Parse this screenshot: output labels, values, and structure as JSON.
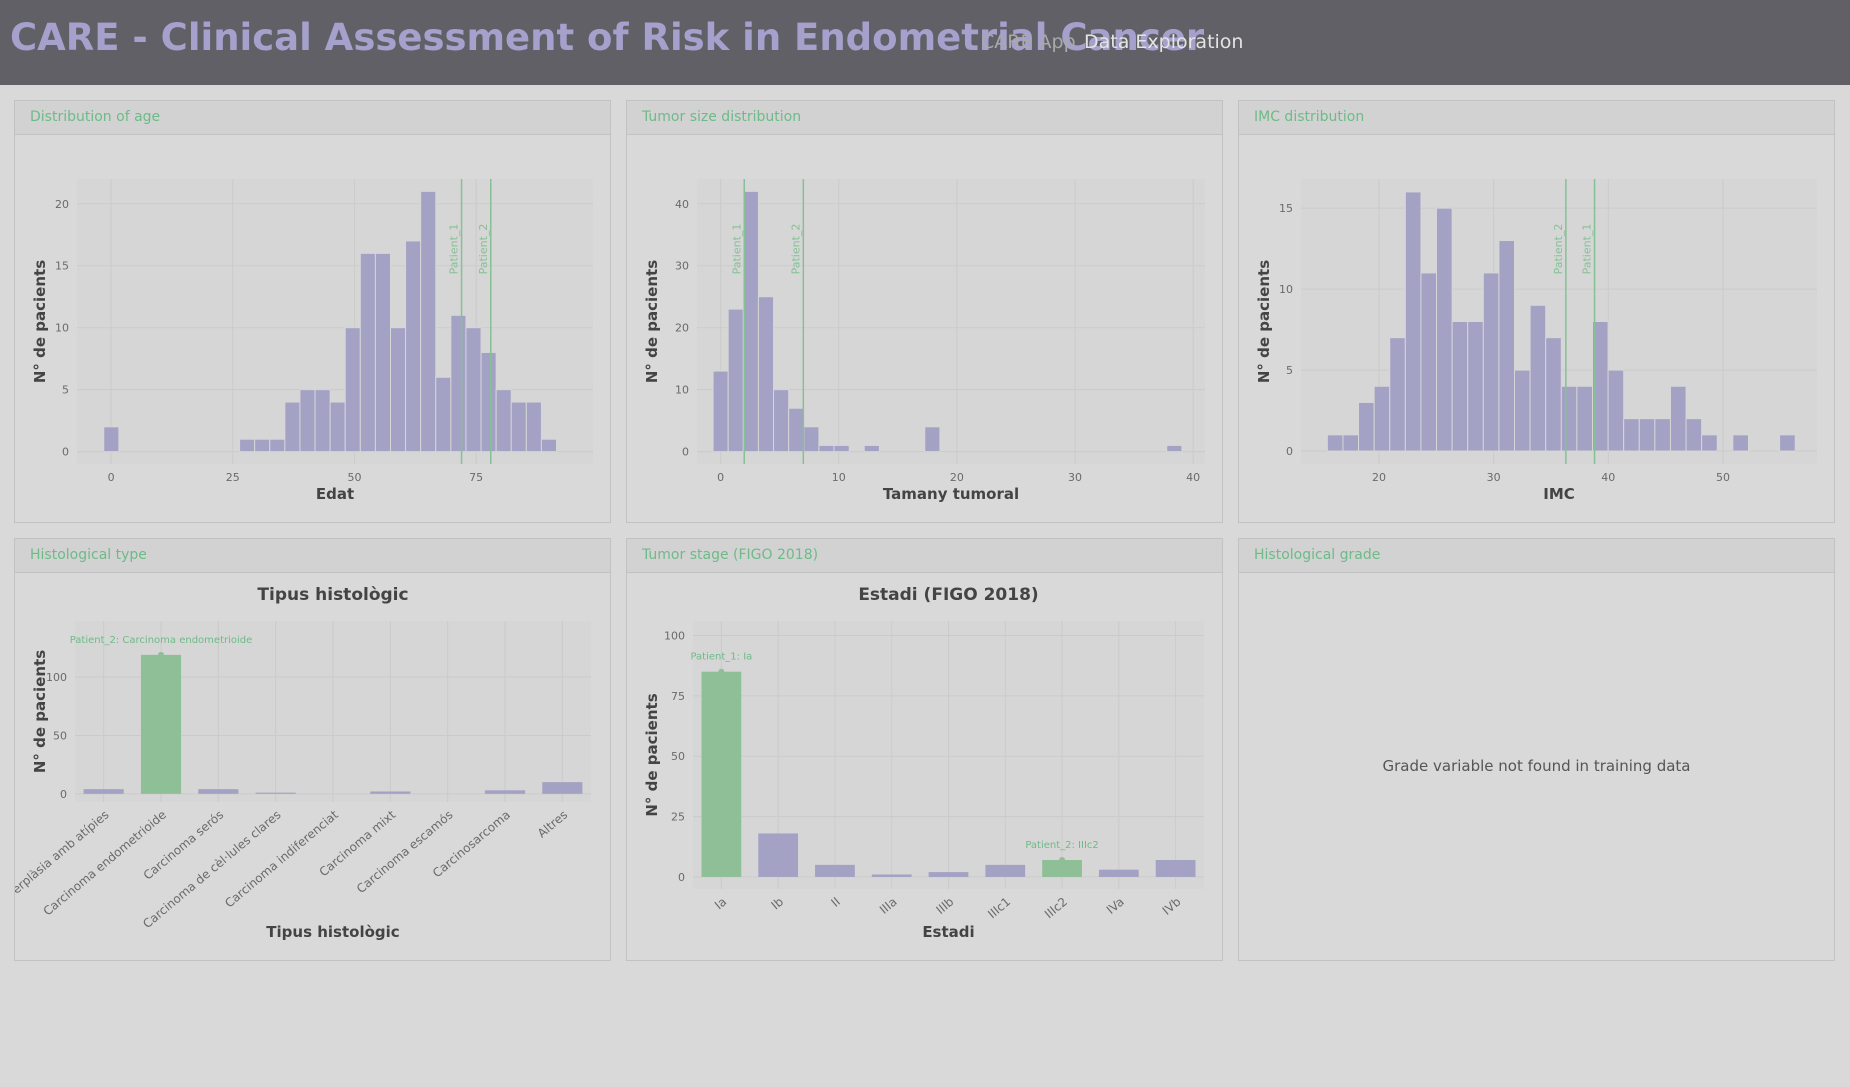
{
  "header": {
    "title": "CARE - Clinical Assessment of Risk in Endometrial Cancer",
    "app": "CARE App",
    "tab": "Data Exploration"
  },
  "panels": [
    "Distribution of age",
    "Tumor size distribution",
    "IMC distribution",
    "Histological type",
    "Tumor stage (FIGO 2018)",
    "Histological grade"
  ],
  "grade_message": "Grade variable not found in training data",
  "chart_data": [
    {
      "type": "histogram",
      "x_label": "Edat",
      "y_label": "N° de pacients",
      "color": "#a3a1c4",
      "line_color": "#86c096",
      "bins": [
        -1.5,
        1.6,
        4.7,
        7.8,
        10.9,
        14,
        17.1,
        20.2,
        23.3,
        26.4,
        29.5,
        32.6,
        35.7,
        38.8,
        41.9,
        45,
        48.1,
        51.2,
        54.3,
        57.4,
        60.5,
        63.6,
        66.7,
        69.8,
        72.9,
        76,
        79.1,
        82.2,
        85.3,
        88.4,
        91.5
      ],
      "values": [
        2,
        0,
        0,
        0,
        0,
        0,
        0,
        0,
        0,
        1,
        1,
        1,
        4,
        5,
        5,
        4,
        10,
        16,
        16,
        10,
        17,
        21,
        6,
        11,
        10,
        8,
        5,
        4,
        4,
        1
      ],
      "xlim": [
        -7,
        99
      ],
      "xticks": [
        0,
        25,
        50,
        75
      ],
      "ylim": [
        -1,
        22
      ],
      "yticks": [
        0,
        5,
        10,
        15,
        20
      ],
      "grid": true,
      "vlines": [
        {
          "label": "Patient_1",
          "x": 72
        },
        {
          "label": "Patient_2",
          "x": 78
        }
      ]
    },
    {
      "type": "histogram",
      "x_label": "Tamany tumoral",
      "y_label": "N° de pacients",
      "color": "#a3a1c4",
      "line_color": "#86c096",
      "bins": [
        -0.64,
        0.64,
        1.92,
        3.2,
        4.48,
        5.76,
        7.04,
        8.32,
        9.6,
        10.88,
        12.16,
        13.44,
        14.72,
        16,
        17.28,
        18.56,
        19.84,
        21.12,
        22.4,
        23.68,
        24.96,
        26.24,
        27.52,
        28.8,
        30.08,
        31.36,
        32.64,
        33.92,
        35.2,
        36.48,
        37.76,
        39.04
      ],
      "values": [
        13,
        23,
        42,
        25,
        10,
        7,
        4,
        1,
        1,
        0,
        1,
        0,
        0,
        0,
        4,
        0,
        0,
        0,
        0,
        0,
        0,
        0,
        0,
        0,
        0,
        0,
        0,
        0,
        0,
        0,
        1
      ],
      "xlim": [
        -2,
        41
      ],
      "xticks": [
        0,
        10,
        20,
        30,
        40
      ],
      "ylim": [
        -2,
        44
      ],
      "yticks": [
        0,
        10,
        20,
        30,
        40
      ],
      "grid": true,
      "vlines": [
        {
          "label": "Patient_1",
          "x": 2
        },
        {
          "label": "Patient_2",
          "x": 7
        }
      ]
    },
    {
      "type": "histogram",
      "x_label": "IMC",
      "y_label": "N° de pacients",
      "color": "#a3a1c4",
      "line_color": "#86c096",
      "bins": [
        15.5,
        16.86,
        18.22,
        19.58,
        20.94,
        22.3,
        23.66,
        25.02,
        26.38,
        27.74,
        29.1,
        30.46,
        31.82,
        33.18,
        34.54,
        35.9,
        37.26,
        38.62,
        39.98,
        41.34,
        42.7,
        44.06,
        45.42,
        46.78,
        48.14,
        49.5,
        50.86,
        52.22,
        53.58,
        54.94,
        56.3
      ],
      "values": [
        1,
        1,
        3,
        4,
        7,
        16,
        11,
        15,
        8,
        8,
        11,
        13,
        5,
        9,
        7,
        4,
        4,
        8,
        5,
        2,
        2,
        2,
        4,
        2,
        1,
        0,
        1,
        0,
        0,
        1
      ],
      "xlim": [
        13.2,
        58.2
      ],
      "xticks": [
        20,
        30,
        40,
        50
      ],
      "ylim": [
        -0.8,
        16.8
      ],
      "yticks": [
        0,
        5,
        10,
        15
      ],
      "grid": true,
      "vlines": [
        {
          "label": "Patient_2",
          "x": 36.3
        },
        {
          "label": "Patient_1",
          "x": 38.8
        }
      ]
    },
    {
      "type": "bar",
      "title": "Tipus histològic",
      "x_label": "Tipus histològic",
      "y_label": "N° de pacients",
      "categories": [
        "Hiperplàsia amb atípies",
        "Carcinoma endometrioide",
        "Carcinoma serós",
        "Carcinoma de cèl·lules clares",
        "Carcinoma indiferenciat",
        "Carcinoma mixt",
        "Carcinoma escamós",
        "Carcinosarcoma",
        "Altres"
      ],
      "values": [
        4,
        119,
        4,
        1,
        0,
        2,
        0,
        3,
        10
      ],
      "colors": [
        "#a3a1c4",
        "#8fbf96",
        "#a3a1c4",
        "#a3a1c4",
        "#a3a1c4",
        "#a3a1c4",
        "#a3a1c4",
        "#a3a1c4",
        "#a3a1c4"
      ],
      "ylim": [
        -7,
        148
      ],
      "yticks": [
        0,
        50,
        100
      ],
      "grid": true,
      "annotations": [
        {
          "text": "Patient_2: Carcinoma endometrioide",
          "category": "Carcinoma endometrioide"
        }
      ]
    },
    {
      "type": "bar",
      "title": "Estadi (FIGO 2018)",
      "x_label": "Estadi",
      "y_label": "N° de pacients",
      "categories": [
        "Ia",
        "Ib",
        "II",
        "IIIa",
        "IIIb",
        "IIIc1",
        "IIIc2",
        "IVa",
        "IVb"
      ],
      "values": [
        85,
        18,
        5,
        1,
        2,
        5,
        7,
        3,
        7
      ],
      "colors": [
        "#8fbf96",
        "#a3a1c4",
        "#a3a1c4",
        "#a3a1c4",
        "#a3a1c4",
        "#a3a1c4",
        "#8fbf96",
        "#a3a1c4",
        "#a3a1c4"
      ],
      "ylim": [
        -5,
        106
      ],
      "yticks": [
        0,
        25,
        50,
        75,
        100
      ],
      "grid": true,
      "annotations": [
        {
          "text": "Patient_1: Ia",
          "category": "Ia"
        },
        {
          "text": "Patient_2: IIIc2",
          "category": "IIIc2"
        }
      ]
    }
  ]
}
